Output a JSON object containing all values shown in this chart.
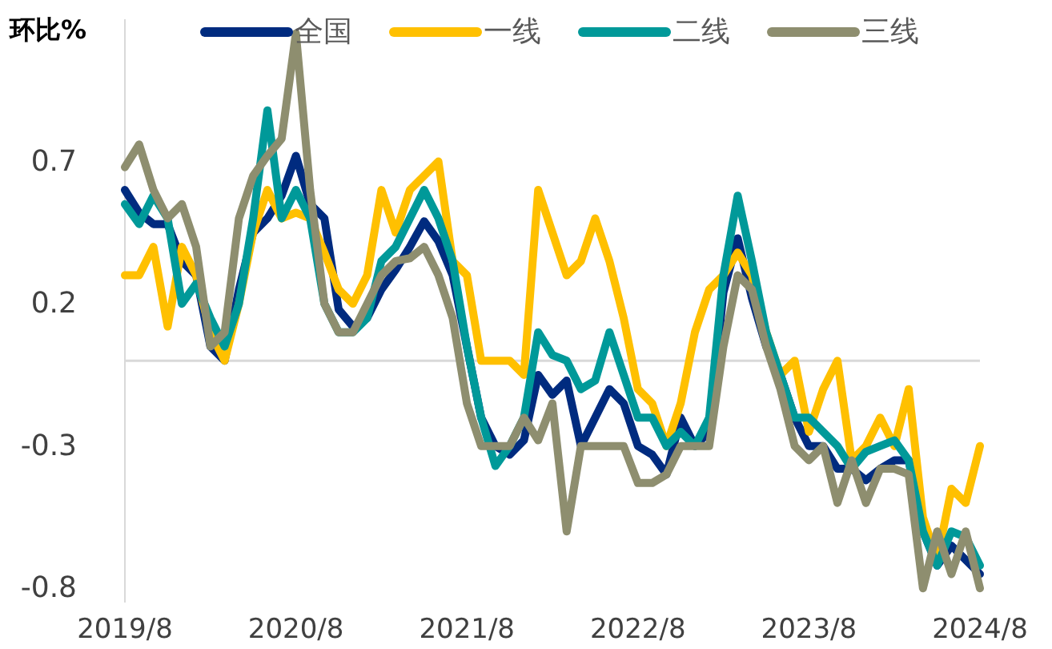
{
  "chart_data": {
    "type": "line",
    "ylabel": "环比%",
    "legend": "top",
    "line_style": "solid",
    "marker": "none",
    "grid": false,
    "categories": [
      "2019/8",
      null,
      null,
      null,
      null,
      null,
      null,
      null,
      null,
      null,
      null,
      null,
      "2020/8",
      null,
      null,
      null,
      null,
      null,
      null,
      null,
      null,
      null,
      null,
      null,
      "2021/8",
      null,
      null,
      null,
      null,
      null,
      null,
      null,
      null,
      null,
      null,
      null,
      "2022/8",
      null,
      null,
      null,
      null,
      null,
      null,
      null,
      null,
      null,
      null,
      null,
      "2023/8",
      null,
      null,
      null,
      null,
      null,
      null,
      null,
      null,
      null,
      null,
      null,
      "2024/8"
    ],
    "ylim": [
      -0.85,
      1.2
    ],
    "yticks": [
      0.7,
      0.2,
      -0.3,
      -0.8
    ],
    "ref_lines": [
      {
        "axis": "y",
        "value": 0,
        "color": "#d9d9d9"
      }
    ],
    "series": [
      {
        "name": "全国",
        "color": "#002b7f",
        "values": [
          0.6,
          0.52,
          0.48,
          0.48,
          0.35,
          0.3,
          0.05,
          0.0,
          0.25,
          0.45,
          0.5,
          0.58,
          0.72,
          0.55,
          0.5,
          0.18,
          0.12,
          0.15,
          0.25,
          0.32,
          0.4,
          0.49,
          0.42,
          0.3,
          0.05,
          -0.2,
          -0.3,
          -0.33,
          -0.28,
          -0.05,
          -0.12,
          -0.07,
          -0.3,
          -0.2,
          -0.1,
          -0.15,
          -0.3,
          -0.33,
          -0.4,
          -0.2,
          -0.3,
          -0.25,
          0.24,
          0.43,
          0.22,
          0.05,
          -0.05,
          -0.2,
          -0.3,
          -0.3,
          -0.38,
          -0.38,
          -0.42,
          -0.38,
          -0.35,
          -0.35,
          -0.6,
          -0.72,
          -0.65,
          -0.7,
          -0.75
        ]
      },
      {
        "name": "一线",
        "color": "#ffc000",
        "values": [
          0.3,
          0.3,
          0.4,
          0.12,
          0.4,
          0.3,
          0.1,
          0.0,
          0.2,
          0.45,
          0.6,
          0.5,
          0.52,
          0.5,
          0.38,
          0.25,
          0.2,
          0.3,
          0.6,
          0.45,
          0.6,
          0.65,
          0.7,
          0.35,
          0.3,
          0.0,
          0.0,
          0.0,
          -0.05,
          0.6,
          0.45,
          0.3,
          0.35,
          0.5,
          0.35,
          0.15,
          -0.1,
          -0.15,
          -0.3,
          -0.15,
          0.1,
          0.25,
          0.3,
          0.38,
          0.3,
          0.1,
          -0.05,
          0.0,
          -0.25,
          -0.1,
          0.0,
          -0.35,
          -0.3,
          -0.2,
          -0.3,
          -0.1,
          -0.55,
          -0.7,
          -0.45,
          -0.5,
          -0.3
        ]
      },
      {
        "name": "二线",
        "color": "#009999",
        "values": [
          0.55,
          0.48,
          0.58,
          0.5,
          0.2,
          0.27,
          0.15,
          0.05,
          0.2,
          0.5,
          0.88,
          0.5,
          0.6,
          0.5,
          0.2,
          0.1,
          0.1,
          0.15,
          0.35,
          0.4,
          0.5,
          0.6,
          0.5,
          0.35,
          0.05,
          -0.2,
          -0.37,
          -0.3,
          -0.2,
          0.1,
          0.02,
          0.0,
          -0.1,
          -0.07,
          0.1,
          -0.05,
          -0.2,
          -0.2,
          -0.3,
          -0.25,
          -0.3,
          -0.2,
          0.3,
          0.58,
          0.35,
          0.1,
          -0.05,
          -0.2,
          -0.2,
          -0.25,
          -0.3,
          -0.38,
          -0.32,
          -0.3,
          -0.28,
          -0.35,
          -0.6,
          -0.72,
          -0.6,
          -0.62,
          -0.72
        ]
      },
      {
        "name": "三线",
        "color": "#8e8e6f",
        "values": [
          0.68,
          0.76,
          0.6,
          0.5,
          0.55,
          0.4,
          0.05,
          0.1,
          0.5,
          0.65,
          0.72,
          0.78,
          1.15,
          0.6,
          0.2,
          0.1,
          0.1,
          0.2,
          0.3,
          0.35,
          0.36,
          0.4,
          0.3,
          0.15,
          -0.15,
          -0.3,
          -0.3,
          -0.3,
          -0.2,
          -0.28,
          -0.15,
          -0.6,
          -0.3,
          -0.3,
          -0.3,
          -0.3,
          -0.43,
          -0.43,
          -0.4,
          -0.3,
          -0.3,
          -0.3,
          0.05,
          0.3,
          0.25,
          0.05,
          -0.1,
          -0.3,
          -0.35,
          -0.3,
          -0.5,
          -0.35,
          -0.5,
          -0.38,
          -0.38,
          -0.4,
          -0.8,
          -0.6,
          -0.75,
          -0.6,
          -0.8
        ]
      }
    ]
  }
}
